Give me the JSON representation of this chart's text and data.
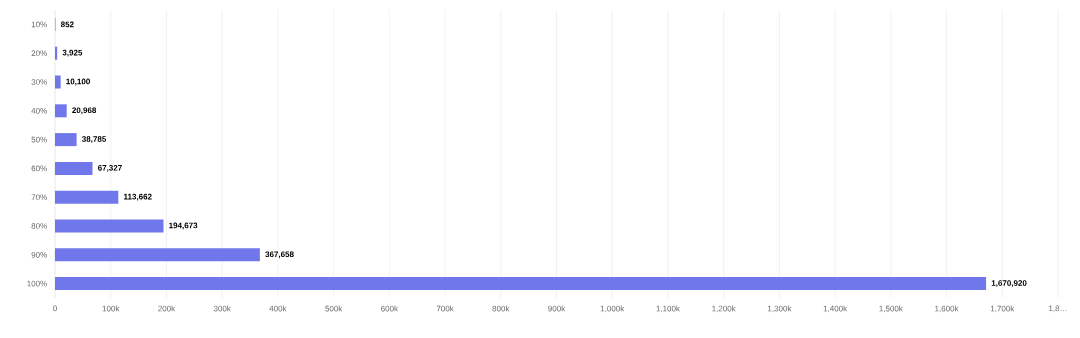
{
  "chart_data": {
    "type": "bar",
    "orientation": "horizontal",
    "categories": [
      "10%",
      "20%",
      "30%",
      "40%",
      "50%",
      "60%",
      "70%",
      "80%",
      "90%",
      "100%"
    ],
    "values": [
      852,
      3925,
      10100,
      20968,
      38785,
      67327,
      113662,
      194673,
      367658,
      1670920
    ],
    "value_labels": [
      "852",
      "3,925",
      "10,100",
      "20,968",
      "38,785",
      "67,327",
      "113,662",
      "194,673",
      "367,658",
      "1,670,920"
    ],
    "color": "#7077ea",
    "xlim": [
      0,
      1800000
    ],
    "xticks": [
      0,
      {
        "value": 100000,
        "label": "100k"
      },
      {
        "value": 200000,
        "label": "200k"
      },
      {
        "value": 300000,
        "label": "300k"
      },
      {
        "value": 400000,
        "label": "400k"
      },
      {
        "value": 500000,
        "label": "500k"
      },
      {
        "value": 600000,
        "label": "600k"
      },
      {
        "value": 700000,
        "label": "700k"
      },
      {
        "value": 800000,
        "label": "800k"
      },
      {
        "value": 900000,
        "label": "900k"
      },
      {
        "value": 1000000,
        "label": "1,000k"
      },
      {
        "value": 1100000,
        "label": "1,100k"
      },
      {
        "value": 1200000,
        "label": "1,200k"
      },
      {
        "value": 1300000,
        "label": "1,300k"
      },
      {
        "value": 1400000,
        "label": "1,400k"
      },
      {
        "value": 1500000,
        "label": "1,500k"
      },
      {
        "value": 1600000,
        "label": "1,600k"
      },
      {
        "value": 1700000,
        "label": "1,700k"
      },
      {
        "value": 1800000,
        "label": "1,8…"
      }
    ],
    "grid": "x"
  }
}
